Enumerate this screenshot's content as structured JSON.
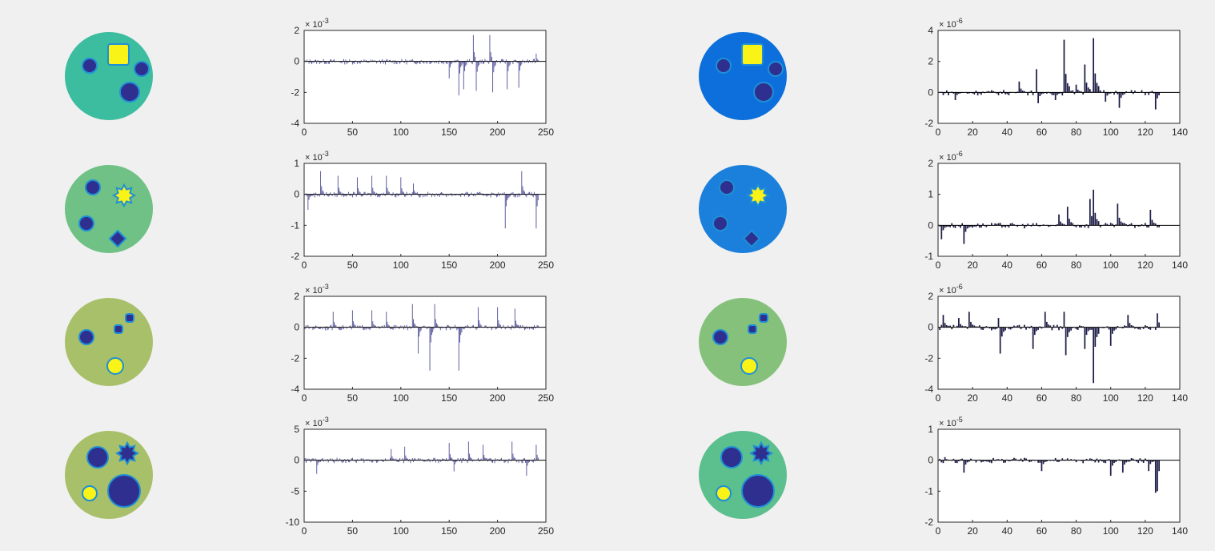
{
  "colors": {
    "figure_background": "#f0f0f0",
    "axes_background": "#ffffff",
    "bars_left_column": "#5b5b9f",
    "bars_right_column": "#1c1c46",
    "baseline": "#000000",
    "axis_box": "#262626",
    "inclusion_dark": "#2e2f8e",
    "inclusion_bright": "#f9f317",
    "inclusion_rim": "#1f8fd6"
  },
  "disk_images": [
    {
      "background": "#3dbd9f",
      "inclusions": [
        {
          "shape": "square",
          "color": "bright"
        },
        {
          "shape": "circle",
          "color": "dark"
        },
        {
          "shape": "circle",
          "color": "dark"
        },
        {
          "shape": "circle",
          "color": "dark"
        }
      ]
    },
    {
      "background": "#0c6fdb",
      "inclusions": [
        {
          "shape": "square",
          "color": "bright"
        },
        {
          "shape": "circle",
          "color": "dark"
        },
        {
          "shape": "circle",
          "color": "dark"
        },
        {
          "shape": "circle",
          "color": "dark"
        }
      ]
    },
    {
      "background": "#6fc186",
      "inclusions": [
        {
          "shape": "circle",
          "color": "dark"
        },
        {
          "shape": "star",
          "color": "bright"
        },
        {
          "shape": "circle",
          "color": "dark"
        },
        {
          "shape": "diamond",
          "color": "dark"
        }
      ]
    },
    {
      "background": "#1a80db",
      "inclusions": [
        {
          "shape": "circle",
          "color": "dark"
        },
        {
          "shape": "star",
          "color": "bright"
        },
        {
          "shape": "circle",
          "color": "dark"
        },
        {
          "shape": "diamond",
          "color": "dark"
        }
      ]
    },
    {
      "background": "#a8c069",
      "inclusions": [
        {
          "shape": "circle",
          "color": "dark"
        },
        {
          "shape": "square",
          "color": "dark"
        },
        {
          "shape": "square",
          "color": "dark"
        },
        {
          "shape": "circle",
          "color": "bright"
        }
      ]
    },
    {
      "background": "#86c17c",
      "inclusions": [
        {
          "shape": "circle",
          "color": "dark"
        },
        {
          "shape": "square",
          "color": "dark"
        },
        {
          "shape": "square",
          "color": "dark"
        },
        {
          "shape": "circle",
          "color": "bright"
        }
      ]
    },
    {
      "background": "#a8c069",
      "inclusions": [
        {
          "shape": "circle",
          "color": "dark"
        },
        {
          "shape": "star",
          "color": "dark"
        },
        {
          "shape": "circle",
          "color": "bright"
        },
        {
          "shape": "circle",
          "color": "dark"
        }
      ]
    },
    {
      "background": "#5cbf8e",
      "inclusions": [
        {
          "shape": "circle",
          "color": "dark"
        },
        {
          "shape": "star",
          "color": "dark"
        },
        {
          "shape": "circle",
          "color": "bright"
        },
        {
          "shape": "circle",
          "color": "dark"
        }
      ]
    }
  ],
  "chart_data": [
    {
      "type": "bar",
      "column": "left",
      "row": 1,
      "exponent": "-3",
      "xlim": [
        0,
        250
      ],
      "ylim": [
        -4,
        2
      ],
      "xticks": [
        "0",
        "50",
        "100",
        "150",
        "200",
        "250"
      ],
      "yticks": [
        "2",
        "0",
        "-2",
        "-4"
      ],
      "n": 242,
      "features": [
        {
          "x": 150,
          "y": -1.1
        },
        {
          "x": 160,
          "y": -2.2
        },
        {
          "x": 165,
          "y": -1.8
        },
        {
          "x": 175,
          "y": 1.7
        },
        {
          "x": 178,
          "y": -1.9
        },
        {
          "x": 192,
          "y": 1.7
        },
        {
          "x": 195,
          "y": -2.0
        },
        {
          "x": 210,
          "y": -1.8
        },
        {
          "x": 222,
          "y": -1.7
        },
        {
          "x": 240,
          "y": 0.5
        }
      ]
    },
    {
      "type": "bar",
      "column": "right",
      "row": 1,
      "exponent": "-6",
      "xlim": [
        0,
        140
      ],
      "ylim": [
        -2,
        4
      ],
      "xticks": [
        "0",
        "20",
        "40",
        "60",
        "80",
        "100",
        "120",
        "140"
      ],
      "yticks": [
        "4",
        "2",
        "0",
        "-2"
      ],
      "n": 128,
      "features": [
        {
          "x": 10,
          "y": -0.5
        },
        {
          "x": 47,
          "y": 0.7
        },
        {
          "x": 57,
          "y": 1.5
        },
        {
          "x": 58,
          "y": -0.7
        },
        {
          "x": 68,
          "y": -0.5
        },
        {
          "x": 73,
          "y": 3.4
        },
        {
          "x": 80,
          "y": 0.5
        },
        {
          "x": 85,
          "y": 1.8
        },
        {
          "x": 90,
          "y": 3.5
        },
        {
          "x": 97,
          "y": -0.6
        },
        {
          "x": 105,
          "y": -1.0
        },
        {
          "x": 126,
          "y": -1.1
        }
      ]
    },
    {
      "type": "bar",
      "column": "left",
      "row": 2,
      "exponent": "-3",
      "xlim": [
        0,
        250
      ],
      "ylim": [
        -2,
        1
      ],
      "xticks": [
        "0",
        "50",
        "100",
        "150",
        "200",
        "250"
      ],
      "yticks": [
        "1",
        "0",
        "-1",
        "-2"
      ],
      "n": 242,
      "features": [
        {
          "x": 4,
          "y": -0.5
        },
        {
          "x": 17,
          "y": 0.75
        },
        {
          "x": 35,
          "y": 0.6
        },
        {
          "x": 55,
          "y": 0.55
        },
        {
          "x": 70,
          "y": 0.6
        },
        {
          "x": 85,
          "y": 0.6
        },
        {
          "x": 100,
          "y": 0.55
        },
        {
          "x": 113,
          "y": 0.35
        },
        {
          "x": 208,
          "y": -1.1
        },
        {
          "x": 225,
          "y": 0.75
        },
        {
          "x": 240,
          "y": -1.1
        }
      ]
    },
    {
      "type": "bar",
      "column": "right",
      "row": 2,
      "exponent": "-6",
      "xlim": [
        0,
        140
      ],
      "ylim": [
        -1,
        2
      ],
      "xticks": [
        "0",
        "20",
        "40",
        "60",
        "80",
        "100",
        "120",
        "140"
      ],
      "yticks": [
        "2",
        "1",
        "0",
        "-1"
      ],
      "n": 128,
      "features": [
        {
          "x": 2,
          "y": -0.45
        },
        {
          "x": 15,
          "y": -0.6
        },
        {
          "x": 70,
          "y": 0.35
        },
        {
          "x": 75,
          "y": 0.6
        },
        {
          "x": 88,
          "y": 0.85
        },
        {
          "x": 90,
          "y": 1.15
        },
        {
          "x": 104,
          "y": 0.7
        },
        {
          "x": 123,
          "y": 0.5
        }
      ]
    },
    {
      "type": "bar",
      "column": "left",
      "row": 3,
      "exponent": "-3",
      "xlim": [
        0,
        250
      ],
      "ylim": [
        -4,
        2
      ],
      "xticks": [
        "0",
        "50",
        "100",
        "150",
        "200",
        "250"
      ],
      "yticks": [
        "2",
        "0",
        "-2",
        "-4"
      ],
      "n": 242,
      "features": [
        {
          "x": 30,
          "y": 1.0
        },
        {
          "x": 50,
          "y": 1.1
        },
        {
          "x": 70,
          "y": 1.1
        },
        {
          "x": 85,
          "y": 1.0
        },
        {
          "x": 112,
          "y": 1.5
        },
        {
          "x": 118,
          "y": -1.7
        },
        {
          "x": 130,
          "y": -2.8
        },
        {
          "x": 135,
          "y": 1.5
        },
        {
          "x": 160,
          "y": -2.8
        },
        {
          "x": 180,
          "y": 1.3
        },
        {
          "x": 200,
          "y": 1.3
        },
        {
          "x": 218,
          "y": 1.2
        }
      ]
    },
    {
      "type": "bar",
      "column": "right",
      "row": 3,
      "exponent": "-6",
      "xlim": [
        0,
        140
      ],
      "ylim": [
        -4,
        2
      ],
      "xticks": [
        "0",
        "20",
        "40",
        "60",
        "80",
        "100",
        "120",
        "140"
      ],
      "yticks": [
        "2",
        "0",
        "-2",
        "-4"
      ],
      "n": 128,
      "features": [
        {
          "x": 3,
          "y": 0.8
        },
        {
          "x": 12,
          "y": 0.6
        },
        {
          "x": 18,
          "y": 1.0
        },
        {
          "x": 35,
          "y": 0.6
        },
        {
          "x": 36,
          "y": -1.7
        },
        {
          "x": 55,
          "y": -1.4
        },
        {
          "x": 62,
          "y": 1.0
        },
        {
          "x": 73,
          "y": 1.0
        },
        {
          "x": 74,
          "y": -1.8
        },
        {
          "x": 85,
          "y": -1.4
        },
        {
          "x": 90,
          "y": -3.6
        },
        {
          "x": 100,
          "y": -1.2
        },
        {
          "x": 110,
          "y": 0.8
        },
        {
          "x": 127,
          "y": 0.9
        }
      ]
    },
    {
      "type": "bar",
      "column": "left",
      "row": 4,
      "exponent": "-3",
      "xlim": [
        0,
        250
      ],
      "ylim": [
        -10,
        5
      ],
      "xticks": [
        "0",
        "50",
        "100",
        "150",
        "200",
        "250"
      ],
      "yticks": [
        "5",
        "0",
        "-5",
        "-10"
      ],
      "n": 242,
      "features": [
        {
          "x": 13,
          "y": -2.2
        },
        {
          "x": 90,
          "y": 1.8
        },
        {
          "x": 104,
          "y": 2.2
        },
        {
          "x": 150,
          "y": 2.8
        },
        {
          "x": 155,
          "y": -1.8
        },
        {
          "x": 170,
          "y": 3.0
        },
        {
          "x": 185,
          "y": 2.5
        },
        {
          "x": 215,
          "y": 3.0
        },
        {
          "x": 230,
          "y": -2.5
        },
        {
          "x": 240,
          "y": 2.5
        }
      ]
    },
    {
      "type": "bar",
      "column": "right",
      "row": 4,
      "exponent": "-5",
      "xlim": [
        0,
        140
      ],
      "ylim": [
        -2,
        1
      ],
      "xticks": [
        "0",
        "20",
        "40",
        "60",
        "80",
        "100",
        "120",
        "140"
      ],
      "yticks": [
        "1",
        "0",
        "-1",
        "-2"
      ],
      "n": 128,
      "features": [
        {
          "x": 4,
          "y": 0.1
        },
        {
          "x": 15,
          "y": -0.4
        },
        {
          "x": 60,
          "y": -0.35
        },
        {
          "x": 100,
          "y": -0.5
        },
        {
          "x": 107,
          "y": -0.4
        },
        {
          "x": 122,
          "y": -0.35
        },
        {
          "x": 126,
          "y": -1.05
        },
        {
          "x": 127,
          "y": -1.0
        }
      ]
    }
  ]
}
